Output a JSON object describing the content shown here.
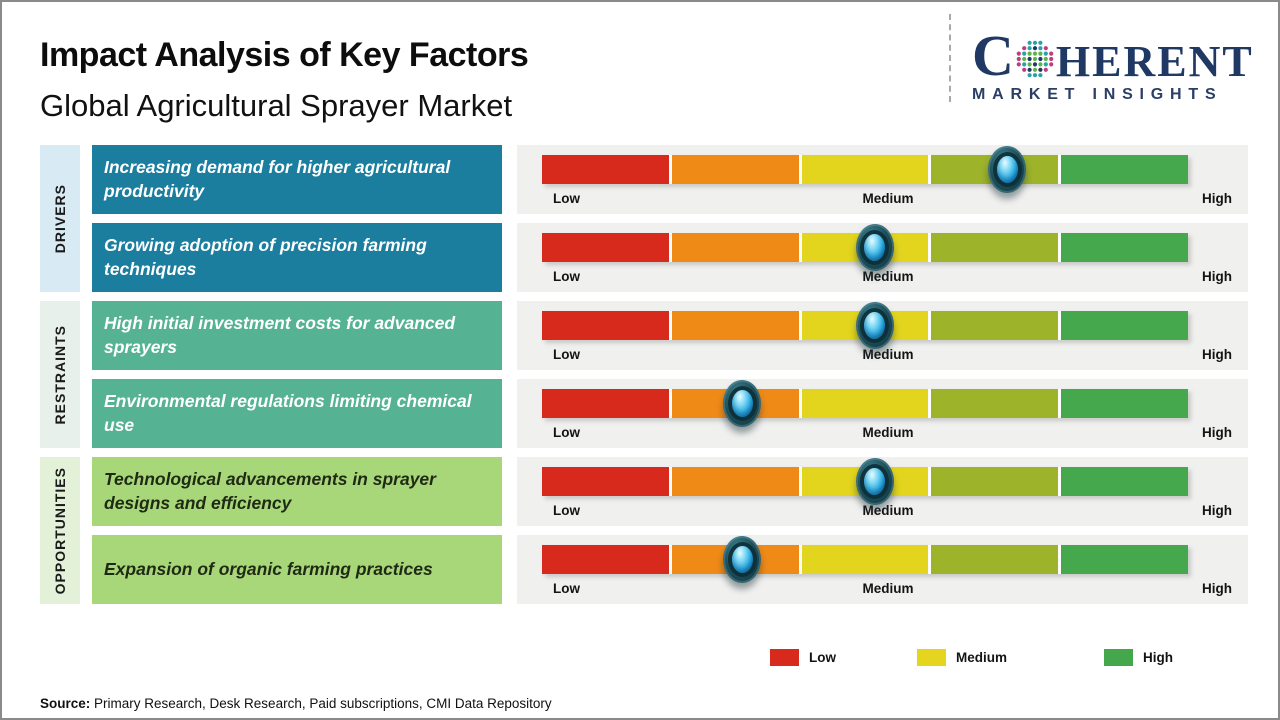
{
  "header": {
    "title": "Impact Analysis of Key Factors",
    "subtitle": "Global Agricultural Sprayer Market"
  },
  "logo": {
    "word_start": "C",
    "word_end": "HERENT",
    "tagline": "MARKET INSIGHTS",
    "brand_color": "#1F3864"
  },
  "sidebar_categories": [
    {
      "label": "DRIVERS",
      "bg": "#D8EAF4"
    },
    {
      "label": "RESTRAINTS",
      "bg": "#E8F0EB"
    },
    {
      "label": "OPPORTUNITIES",
      "bg": "#E3F1D9"
    }
  ],
  "scale_ticks": {
    "low": "Low",
    "medium": "Medium",
    "high": "High"
  },
  "bar_segments": [
    {
      "name": "low",
      "color": "#D8291D"
    },
    {
      "name": "low-medium",
      "color": "#F08A17"
    },
    {
      "name": "medium",
      "color": "#E3D51D"
    },
    {
      "name": "medium-high",
      "color": "#9DB32A"
    },
    {
      "name": "high",
      "color": "#46A84C"
    }
  ],
  "rows": [
    {
      "category": "DRIVERS",
      "factor": "Increasing demand for higher agricultural productivity",
      "impact_level": "Medium-High",
      "marker_percent": 72,
      "box_bg": "#1B7E9F",
      "text_color": "#FFFFFF"
    },
    {
      "category": "DRIVERS",
      "factor": "Growing adoption of precision farming techniques",
      "impact_level": "Medium",
      "marker_percent": 51.5,
      "box_bg": "#1B7E9F",
      "text_color": "#FFFFFF"
    },
    {
      "category": "RESTRAINTS",
      "factor": "High initial investment costs for advanced sprayers",
      "impact_level": "Medium",
      "marker_percent": 51.5,
      "box_bg": "#55B394",
      "text_color": "#FFFFFF"
    },
    {
      "category": "RESTRAINTS",
      "factor": "Environmental regulations limiting chemical use",
      "impact_level": "Low-Medium",
      "marker_percent": 31,
      "box_bg": "#55B394",
      "text_color": "#FFFFFF"
    },
    {
      "category": "OPPORTUNITIES",
      "factor": "Technological advancements in sprayer designs and efficiency",
      "impact_level": "Medium",
      "marker_percent": 51.5,
      "box_bg": "#A8D779",
      "text_color": "#1F2A14"
    },
    {
      "category": "OPPORTUNITIES",
      "factor": "Expansion of organic farming practices",
      "impact_level": "Low-Medium",
      "marker_percent": 31,
      "box_bg": "#A8D779",
      "text_color": "#1F2A14"
    }
  ],
  "legend": [
    {
      "label": "Low",
      "color": "#D8291D"
    },
    {
      "label": "Medium",
      "color": "#E6D51E"
    },
    {
      "label": "High",
      "color": "#44A74B"
    }
  ],
  "source": {
    "label": "Source:",
    "text": " Primary Research, Desk Research, Paid subscriptions, CMI Data Repository"
  },
  "chart_data": {
    "type": "table",
    "title": "Impact Analysis of Key Factors",
    "subtitle": "Global Agricultural Sprayer Market",
    "scale_ticks": [
      "Low",
      "Medium",
      "High"
    ],
    "segment_order": [
      "Low",
      "Low-Medium",
      "Medium",
      "Medium-High",
      "High"
    ],
    "rows": [
      {
        "category": "Drivers",
        "factor": "Increasing demand for higher agricultural productivity",
        "impact": "Medium-High",
        "position_percent": 72
      },
      {
        "category": "Drivers",
        "factor": "Growing adoption of precision farming techniques",
        "impact": "Medium",
        "position_percent": 51.5
      },
      {
        "category": "Restraints",
        "factor": "High initial investment costs for advanced sprayers",
        "impact": "Medium",
        "position_percent": 51.5
      },
      {
        "category": "Restraints",
        "factor": "Environmental regulations limiting chemical use",
        "impact": "Low-Medium",
        "position_percent": 31
      },
      {
        "category": "Opportunities",
        "factor": "Technological advancements in sprayer designs and efficiency",
        "impact": "Medium",
        "position_percent": 51.5
      },
      {
        "category": "Opportunities",
        "factor": "Expansion of organic farming practices",
        "impact": "Low-Medium",
        "position_percent": 31
      }
    ],
    "legend": [
      "Low",
      "Medium",
      "High"
    ],
    "legend_position": "bottom",
    "source": "Primary Research, Desk Research, Paid subscriptions, CMI Data Repository"
  }
}
